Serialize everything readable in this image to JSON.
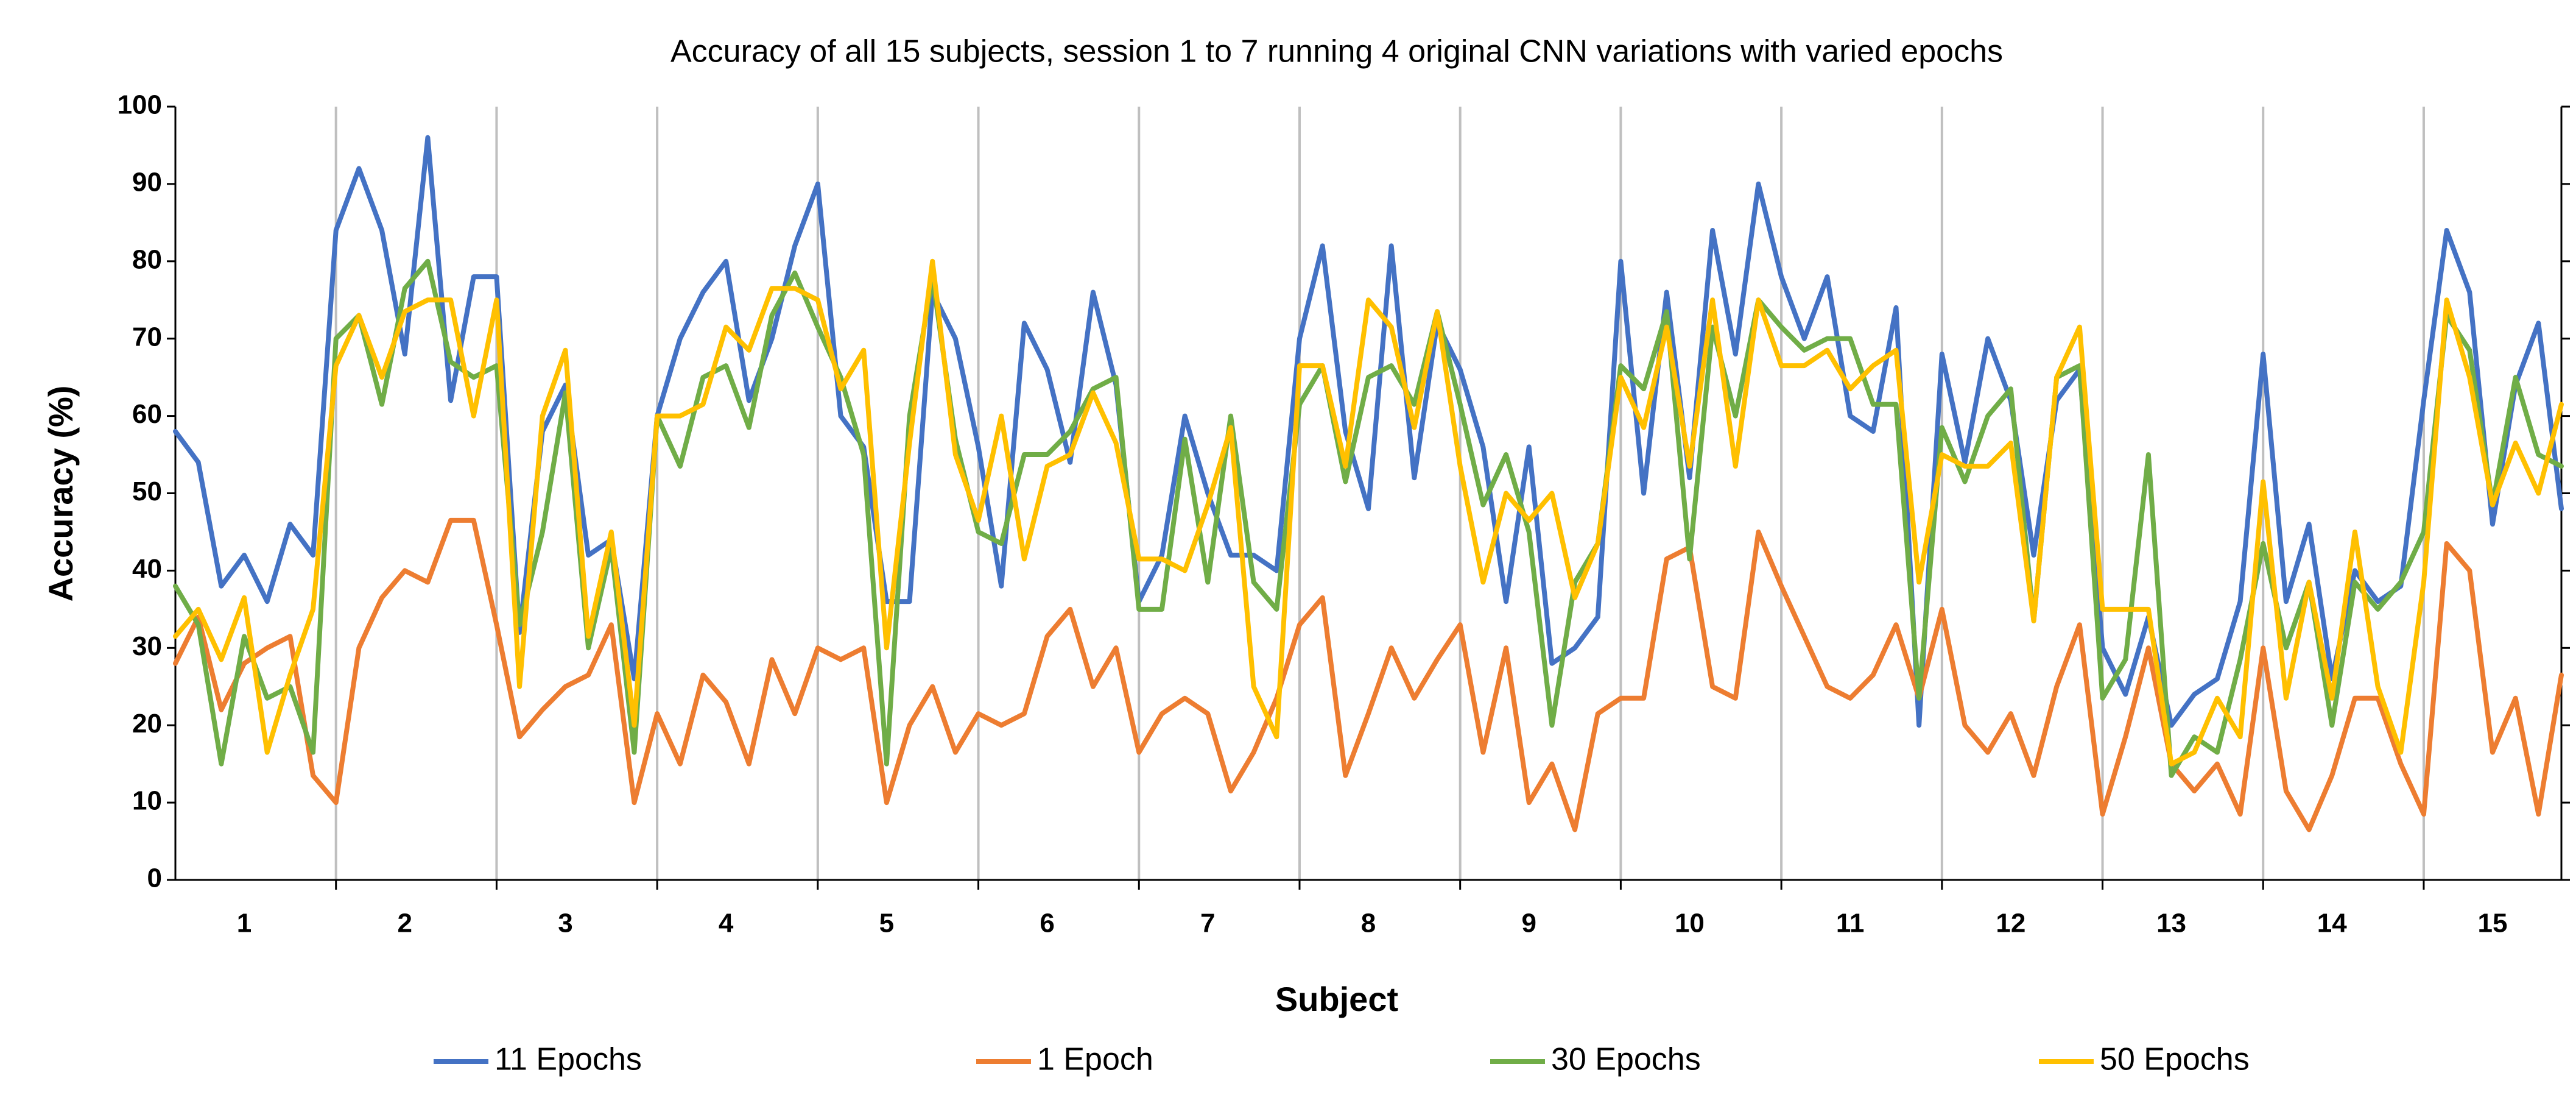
{
  "chart_data": {
    "type": "line",
    "title": "Accuracy of all 15 subjects, session 1 to 7 running 4 original CNN variations with varied epochs",
    "x_label": "Subject",
    "y_label": "Accuracy (%)",
    "categories": [
      null,
      null,
      null,
      "1",
      null,
      null,
      null,
      null,
      null,
      null,
      "2",
      null,
      null,
      null,
      null,
      null,
      null,
      "3",
      null,
      null,
      null,
      null,
      null,
      null,
      "4",
      null,
      null,
      null,
      null,
      null,
      null,
      "5",
      null,
      null,
      null,
      null,
      null,
      null,
      "6",
      null,
      null,
      null,
      null,
      null,
      null,
      "7",
      null,
      null,
      null,
      null,
      null,
      null,
      "8",
      null,
      null,
      null,
      null,
      null,
      null,
      "9",
      null,
      null,
      null,
      null,
      null,
      null,
      "10",
      null,
      null,
      null,
      null,
      null,
      null,
      "11",
      null,
      null,
      null,
      null,
      null,
      null,
      "12",
      null,
      null,
      null,
      null,
      null,
      null,
      "13",
      null,
      null,
      null,
      null,
      null,
      null,
      "14",
      null,
      null,
      null,
      null,
      null,
      null,
      "15",
      null,
      null,
      null
    ],
    "ylim": [
      0,
      100
    ],
    "yticks": [
      0,
      10,
      20,
      30,
      40,
      50,
      60,
      70,
      80,
      90,
      100
    ],
    "legend": "bottom",
    "series": [
      {
        "name": "11 Epochs",
        "color": "#4472c4",
        "values": [
          58,
          54,
          38,
          42,
          36,
          46,
          42,
          84,
          92,
          84,
          68,
          96,
          62,
          78,
          78,
          32,
          58,
          64,
          42,
          44,
          26,
          60,
          70,
          76,
          80,
          62,
          70,
          82,
          90,
          60,
          56,
          36,
          36,
          76,
          70,
          56,
          38,
          72,
          66,
          54,
          76,
          64,
          36,
          42,
          60,
          50,
          42,
          42,
          40,
          70,
          82,
          58,
          48,
          82,
          52,
          72,
          66,
          56,
          36,
          56,
          28,
          30,
          34,
          80,
          50,
          76,
          52,
          84,
          68,
          90,
          78,
          70,
          78,
          60,
          58,
          74,
          20,
          68,
          54,
          70,
          62,
          42,
          62,
          66,
          30,
          24,
          34,
          20,
          24,
          26,
          36,
          68,
          36,
          46,
          26,
          40,
          36,
          38,
          62,
          84,
          76,
          46,
          64,
          72,
          48
        ]
      },
      {
        "name": "1 Epoch",
        "color": "#ed7d31",
        "values": [
          28,
          34,
          22,
          28,
          30,
          31.5,
          13.5,
          10,
          30,
          36.5,
          40,
          38.5,
          46.5,
          46.5,
          33,
          18.5,
          22,
          25,
          26.5,
          33,
          10,
          21.5,
          15,
          26.5,
          23,
          15,
          28.5,
          21.5,
          30,
          28.5,
          30,
          10,
          20,
          25,
          16.5,
          21.5,
          20,
          21.5,
          31.5,
          35,
          25,
          30,
          16.5,
          21.5,
          23.5,
          21.5,
          11.5,
          16.5,
          23.5,
          33,
          36.5,
          13.5,
          21.5,
          30,
          23.5,
          28.5,
          33,
          16.5,
          30,
          10,
          15,
          6.5,
          21.5,
          23.5,
          23.5,
          41.5,
          43,
          25,
          23.5,
          45,
          38,
          31.5,
          25,
          23.5,
          26.5,
          33,
          23.5,
          35,
          20,
          16.5,
          21.5,
          13.5,
          25,
          33,
          8.5,
          18.5,
          30,
          15,
          11.5,
          15,
          8.5,
          30,
          11.5,
          6.5,
          13.5,
          23.5,
          23.5,
          15,
          8.5,
          43.5,
          40,
          16.5,
          23.5,
          8.5,
          26.5
        ]
      },
      {
        "name": "30 Epochs",
        "color": "#70ad47",
        "values": [
          38,
          33,
          15,
          31.5,
          23.5,
          25,
          16.5,
          70,
          73,
          61.5,
          76.5,
          80,
          67,
          65,
          66.5,
          33,
          45,
          63,
          30,
          43,
          16.5,
          60,
          53.5,
          65,
          66.5,
          58.5,
          73,
          78.5,
          71.5,
          65,
          55,
          15,
          60,
          78,
          57,
          45,
          43.5,
          55,
          55,
          58,
          63.5,
          65,
          35,
          35,
          57,
          38.5,
          60,
          38.5,
          35,
          61.5,
          66.5,
          51.5,
          65,
          66.5,
          61.5,
          73.5,
          61.5,
          48.5,
          55,
          45,
          20,
          38.5,
          43.5,
          66.5,
          63.5,
          73.5,
          41.5,
          71.5,
          60,
          75,
          71.5,
          68.5,
          70,
          70,
          61.5,
          61.5,
          23.5,
          58.5,
          51.5,
          60,
          63.5,
          33.5,
          65,
          66.5,
          23.5,
          28.5,
          55,
          13.5,
          18.5,
          16.5,
          28.5,
          43.5,
          30,
          38.5,
          20,
          38.5,
          35,
          38.5,
          45,
          73,
          68.5,
          48.5,
          65,
          55,
          53.5
        ]
      },
      {
        "name": "50 Epochs",
        "color": "#ffc000",
        "values": [
          31.5,
          35,
          28.5,
          36.5,
          16.5,
          26.5,
          35,
          66.5,
          73,
          65,
          73.5,
          75,
          75,
          60,
          75,
          25,
          60,
          68.5,
          31.5,
          45,
          20,
          60,
          60,
          61.5,
          71.5,
          68.5,
          76.5,
          76.5,
          75,
          63.5,
          68.5,
          30,
          56.5,
          80,
          55,
          46.5,
          60,
          41.5,
          53.5,
          55,
          63,
          56.5,
          41.5,
          41.5,
          40,
          48.5,
          58.5,
          25,
          18.5,
          66.5,
          66.5,
          53.5,
          75,
          71.5,
          58.5,
          73.5,
          53.5,
          38.5,
          50,
          46.5,
          50,
          36.5,
          43.5,
          65,
          58.5,
          71.5,
          53.5,
          75,
          53.5,
          75,
          66.5,
          66.5,
          68.5,
          63.5,
          66.5,
          68.5,
          38.5,
          55,
          53.5,
          53.5,
          56.5,
          33.5,
          65,
          71.5,
          35,
          35,
          35,
          15,
          16.5,
          23.5,
          18.5,
          51.5,
          23.5,
          38.5,
          23.5,
          45,
          25,
          16.5,
          38.5,
          75,
          65,
          48.5,
          56.5,
          50,
          61.5
        ]
      }
    ]
  }
}
